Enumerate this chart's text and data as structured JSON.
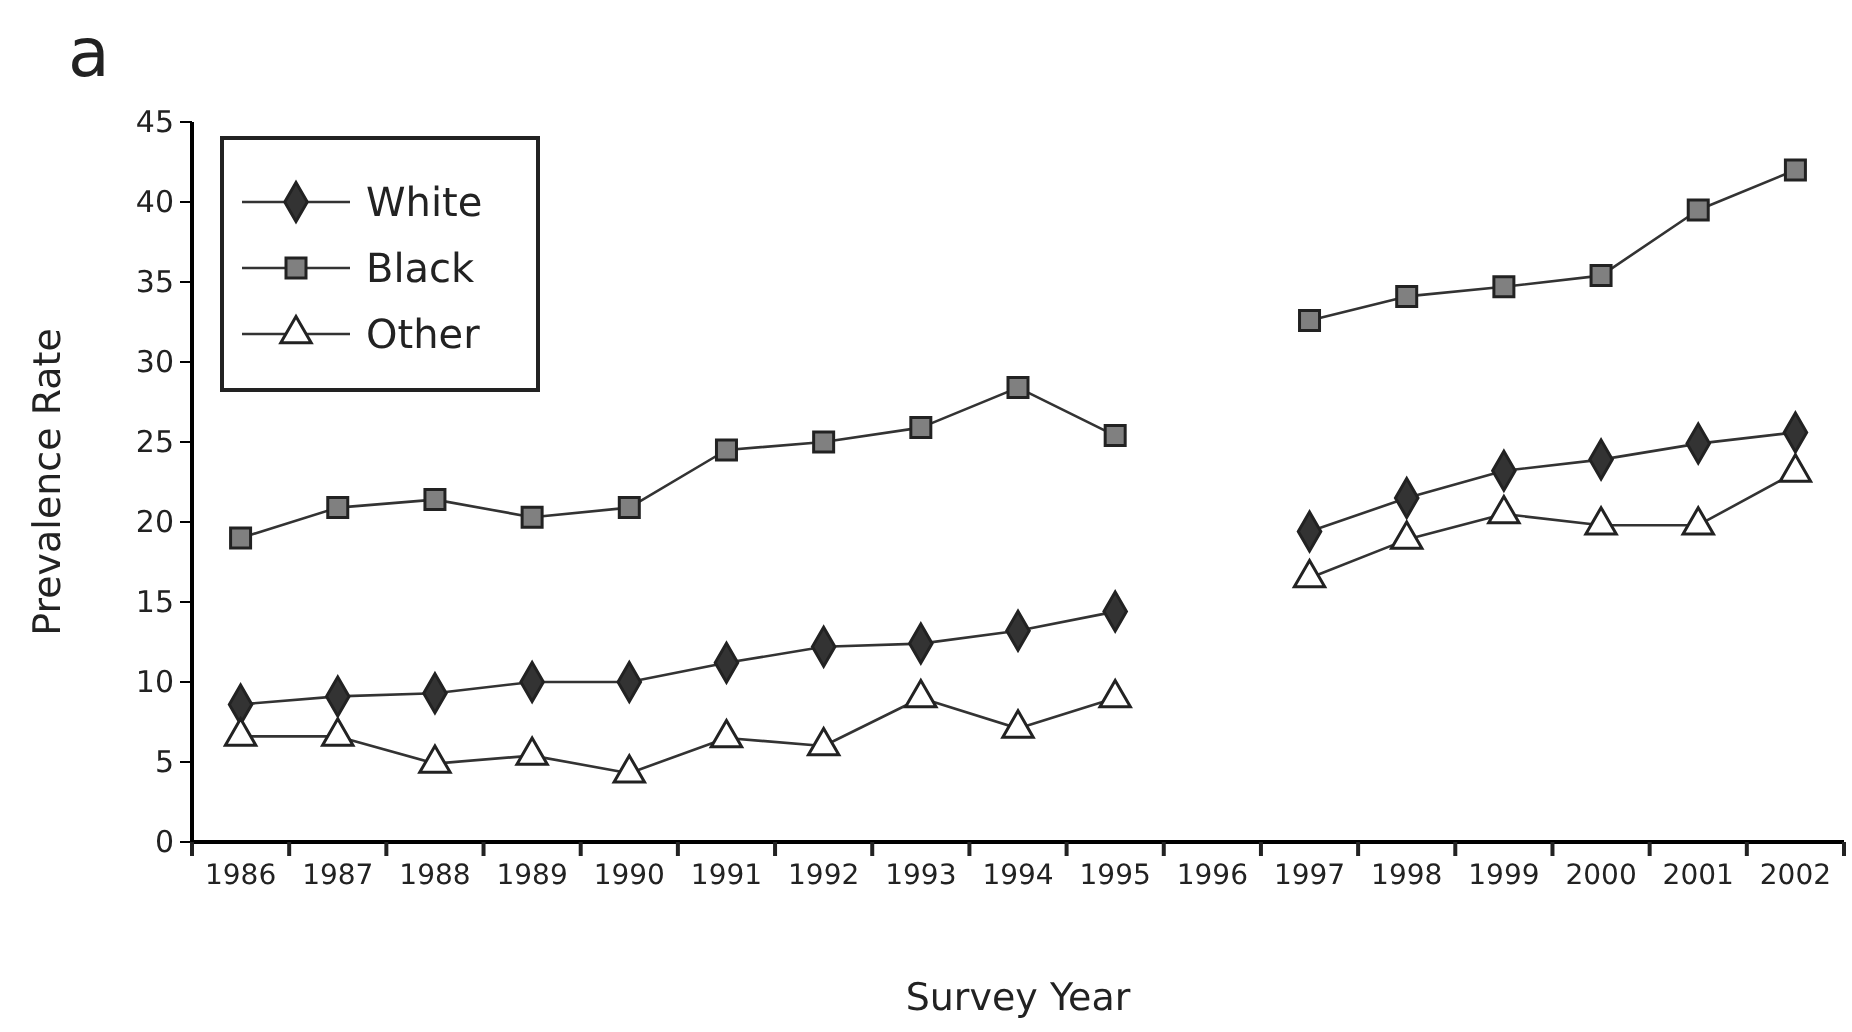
{
  "chart_data": {
    "type": "line",
    "title": "a",
    "xlabel": "Survey Year",
    "ylabel": "Prevalence Rate",
    "categories": [
      "1986",
      "1987",
      "1988",
      "1989",
      "1990",
      "1991",
      "1992",
      "1993",
      "1994",
      "1995",
      "1996",
      "1997",
      "1998",
      "1999",
      "2000",
      "2001",
      "2002"
    ],
    "series": [
      {
        "name": "White",
        "color": "#333333",
        "marker": "diamond",
        "values": [
          8.6,
          9.1,
          9.3,
          10.0,
          10.0,
          11.2,
          12.2,
          12.4,
          13.2,
          14.4,
          null,
          19.4,
          21.5,
          23.2,
          23.9,
          24.9,
          25.6
        ]
      },
      {
        "name": "Black",
        "color": "#808080",
        "marker": "square",
        "values": [
          19.0,
          20.9,
          21.4,
          20.3,
          20.9,
          24.5,
          25.0,
          25.9,
          28.4,
          25.4,
          null,
          32.6,
          34.1,
          34.7,
          35.4,
          39.5,
          42.0
        ]
      },
      {
        "name": "Other",
        "color": "#ffffff",
        "marker": "triangle",
        "values": [
          6.6,
          6.6,
          4.9,
          5.4,
          4.3,
          6.5,
          6.0,
          9.0,
          7.1,
          9.0,
          null,
          16.5,
          18.9,
          20.5,
          19.8,
          19.8,
          23.1
        ]
      }
    ],
    "ylim": [
      0,
      45
    ],
    "yticks": [
      0,
      5,
      10,
      15,
      20,
      25,
      30,
      35,
      40,
      45
    ],
    "legend": "top left",
    "grid": false
  }
}
